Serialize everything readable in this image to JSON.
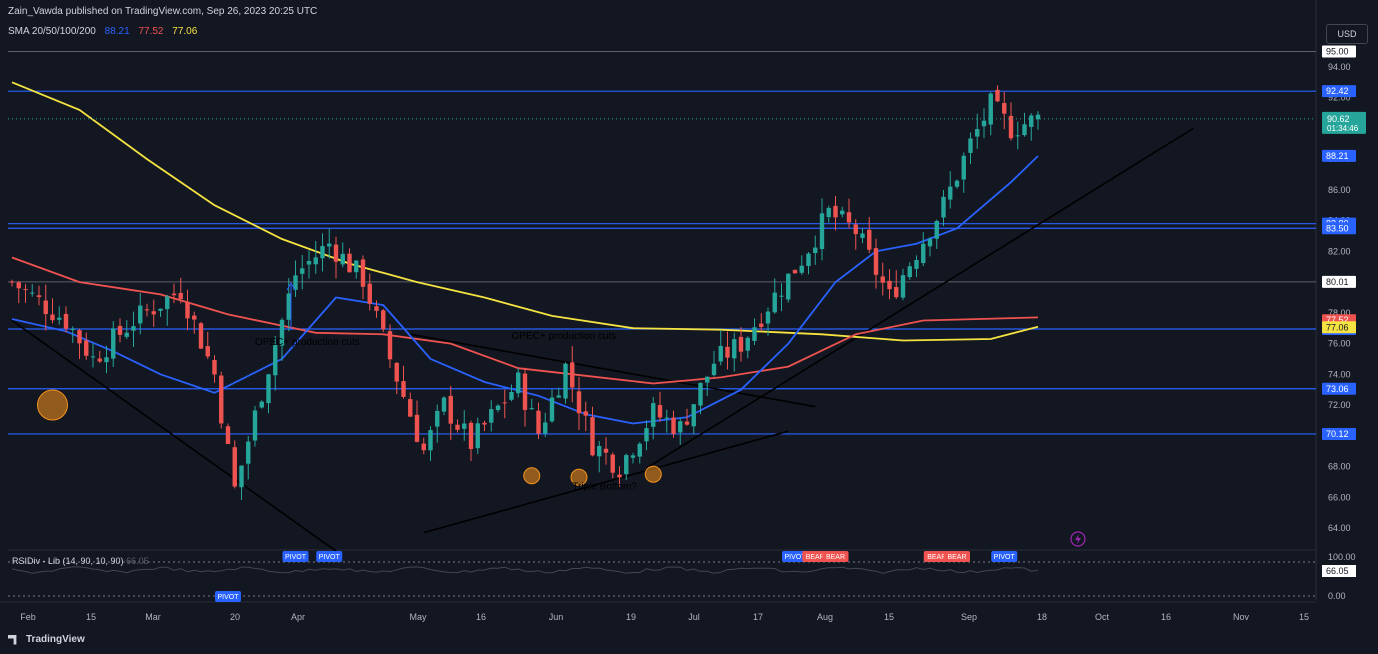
{
  "header": {
    "publisher": "Zain_Vawda published on TradingView.com, Sep 26, 2023 20:25 UTC",
    "sma_label": "SMA 20/50/100/200",
    "sma_values": [
      "88.21",
      "77.52",
      "77.06"
    ]
  },
  "currency_button": "USD",
  "footer_logo": "TradingView",
  "rsi": {
    "label": "RSIDiv - Lib (14, 90, 10, 90)",
    "label_extra": "66.05",
    "axis_labels": [
      "100.00",
      "66.05",
      "0.00"
    ]
  },
  "colors": {
    "background": "#131722",
    "bull": "#26a69a",
    "bear": "#ef5350",
    "sma20": "#2962ff",
    "sma50": "#ef5350",
    "sma100": "#f5e342",
    "hline": "#2962ff",
    "trendline": "#000000",
    "annotation_fill": "#f7931a"
  },
  "chart_data": {
    "type": "candlestick",
    "price_axis": {
      "ylim": [
        62.7,
        96.4
      ],
      "ticks": [
        "95.00",
        "94.00",
        "92.00",
        "90.00",
        "88.00",
        "86.00",
        "84.00",
        "82.00",
        "80.00",
        "78.00",
        "76.00",
        "74.00",
        "72.00",
        "70.00",
        "68.00",
        "66.00",
        "64.00"
      ],
      "last_price": "90.62",
      "countdown": "01:34:46"
    },
    "time_axis": {
      "labels": [
        "Feb",
        "15",
        "Mar",
        "20",
        "Apr",
        "May",
        "16",
        "Jun",
        "19",
        "Jul",
        "17",
        "Aug",
        "15",
        "Sep",
        "18",
        "Oct",
        "16",
        "Nov",
        "15"
      ]
    },
    "horizontal_levels": [
      {
        "value": 95.0,
        "label": "95.00",
        "style": "gray"
      },
      {
        "value": 92.42,
        "label": "92.42",
        "style": "blue"
      },
      {
        "value": 83.8,
        "label": "83.80",
        "style": "blue"
      },
      {
        "value": 83.5,
        "label": "83.50",
        "style": "blue"
      },
      {
        "value": 80.01,
        "label": "80.01",
        "style": "gray"
      },
      {
        "value": 76.95,
        "label": "76.95",
        "style": "blue"
      },
      {
        "value": 73.06,
        "label": "73.06",
        "style": "blue"
      },
      {
        "value": 70.12,
        "label": "70.12",
        "style": "blue"
      }
    ],
    "ma_labels": [
      {
        "value": 88.21,
        "label": "88.21",
        "color": "#2962ff"
      },
      {
        "value": 77.52,
        "label": "77.52",
        "color": "#ef5350"
      },
      {
        "value": 77.06,
        "label": "77.06",
        "color": "#f5e342"
      }
    ],
    "sma20": [
      [
        0,
        77.6
      ],
      [
        8,
        76.8
      ],
      [
        15,
        75.5
      ],
      [
        22,
        74.0
      ],
      [
        30,
        72.8
      ],
      [
        40,
        75.0
      ],
      [
        48,
        79.0
      ],
      [
        55,
        78.5
      ],
      [
        62,
        75.0
      ],
      [
        70,
        73.5
      ],
      [
        78,
        72.6
      ],
      [
        85,
        71.4
      ],
      [
        92,
        70.8
      ],
      [
        100,
        71.2
      ],
      [
        108,
        73.0
      ],
      [
        115,
        76.0
      ],
      [
        122,
        80.0
      ],
      [
        128,
        82.0
      ],
      [
        134,
        82.5
      ],
      [
        140,
        83.5
      ],
      [
        148,
        86.5
      ],
      [
        152,
        88.2
      ]
    ],
    "sma50": [
      [
        0,
        81.6
      ],
      [
        10,
        80.0
      ],
      [
        22,
        79.2
      ],
      [
        32,
        77.9
      ],
      [
        45,
        76.7
      ],
      [
        55,
        76.6
      ],
      [
        65,
        76.0
      ],
      [
        75,
        74.4
      ],
      [
        85,
        73.9
      ],
      [
        95,
        73.4
      ],
      [
        105,
        73.8
      ],
      [
        115,
        74.5
      ],
      [
        125,
        76.6
      ],
      [
        135,
        77.5
      ],
      [
        152,
        77.7
      ]
    ],
    "sma100": [
      [
        0,
        93.0
      ],
      [
        10,
        91.2
      ],
      [
        20,
        88.0
      ],
      [
        30,
        85.0
      ],
      [
        40,
        82.8
      ],
      [
        50,
        81.2
      ],
      [
        60,
        80.0
      ],
      [
        70,
        79.0
      ],
      [
        80,
        77.8
      ],
      [
        92,
        77.0
      ],
      [
        105,
        76.9
      ],
      [
        120,
        76.6
      ],
      [
        132,
        76.2
      ],
      [
        145,
        76.3
      ],
      [
        152,
        77.1
      ]
    ],
    "candles_meta": {
      "count": 153,
      "start_value": 80.0,
      "price_path": [
        [
          0,
          80.0
        ],
        [
          8,
          77.5
        ],
        [
          12,
          75.0
        ],
        [
          18,
          77.5
        ],
        [
          25,
          79.5
        ],
        [
          30,
          74.0
        ],
        [
          33,
          66.5
        ],
        [
          38,
          74.5
        ],
        [
          42,
          80.5
        ],
        [
          47,
          82.5
        ],
        [
          52,
          80.2
        ],
        [
          56,
          75.0
        ],
        [
          61,
          69.0
        ],
        [
          64,
          72.0
        ],
        [
          68,
          69.5
        ],
        [
          75,
          73.5
        ],
        [
          78,
          70.2
        ],
        [
          82,
          74.5
        ],
        [
          86,
          69.5
        ],
        [
          90,
          68.0
        ],
        [
          95,
          71.5
        ],
        [
          99,
          70.5
        ],
        [
          104,
          74.8
        ],
        [
          108,
          76.0
        ],
        [
          112,
          78.5
        ],
        [
          117,
          81.5
        ],
        [
          121,
          84.5
        ],
        [
          125,
          83.3
        ],
        [
          130,
          79.0
        ],
        [
          134,
          82.0
        ],
        [
          138,
          85.0
        ],
        [
          142,
          89.0
        ],
        [
          145,
          91.5
        ],
        [
          148,
          90.0
        ],
        [
          152,
          90.62
        ]
      ]
    },
    "trendlines": [
      {
        "x1": 0,
        "y1": 77.5,
        "x2": 48,
        "y2": 62.5
      },
      {
        "x1": 61,
        "y1": 63.7,
        "x2": 115,
        "y2": 70.3
      },
      {
        "x1": 59,
        "y1": 76.6,
        "x2": 119,
        "y2": 71.9
      },
      {
        "x1": 94,
        "y1": 67.9,
        "x2": 175,
        "y2": 90.0
      }
    ],
    "annotations": [
      {
        "text": "OPEC+ production cuts",
        "x": 36,
        "value": 75.9
      },
      {
        "text": "OPEC+ production cuts",
        "x": 74,
        "value": 76.3
      },
      {
        "text": "Triple Bottom?",
        "x": 83,
        "value": 66.5
      }
    ],
    "circles": [
      {
        "x": 6,
        "value": 72.0,
        "size": "large"
      },
      {
        "x": 77,
        "value": 67.4,
        "size": "small"
      },
      {
        "x": 84,
        "value": 67.3,
        "size": "small"
      },
      {
        "x": 95,
        "value": 67.5,
        "size": "small"
      }
    ],
    "rsi_badges": [
      {
        "text": "PIVOT",
        "x": 32,
        "position": "bottom",
        "color": "#2962ff"
      },
      {
        "text": "PIVOT",
        "x": 42,
        "position": "top",
        "color": "#2962ff"
      },
      {
        "text": "PIVOT",
        "x": 47,
        "position": "top",
        "color": "#2962ff"
      },
      {
        "text": "PIVOT",
        "x": 116,
        "position": "top",
        "color": "#2962ff"
      },
      {
        "text": "BEAR",
        "x": 119,
        "position": "top",
        "color": "#ef5350"
      },
      {
        "text": "BEAR",
        "x": 122,
        "position": "top",
        "color": "#ef5350"
      },
      {
        "text": "BEAR",
        "x": 137,
        "position": "top",
        "color": "#ef5350"
      },
      {
        "text": "BEAR",
        "x": 140,
        "position": "top",
        "color": "#ef5350"
      },
      {
        "text": "PIVOT",
        "x": 147,
        "position": "top",
        "color": "#2962ff"
      }
    ]
  }
}
